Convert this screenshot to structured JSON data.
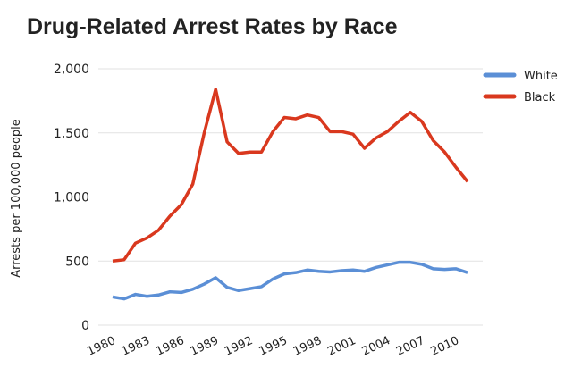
{
  "chart_data": {
    "type": "line",
    "title": "Drug-Related Arrest Rates by Race",
    "y_label": "Arrests per 100,000 people",
    "x": [
      1980,
      1981,
      1982,
      1983,
      1984,
      1985,
      1986,
      1987,
      1988,
      1989,
      1990,
      1991,
      1992,
      1993,
      1994,
      1995,
      1996,
      1997,
      1998,
      1999,
      2000,
      2001,
      2002,
      2003,
      2004,
      2005,
      2006,
      2007,
      2008,
      2009,
      2010,
      2011
    ],
    "series": [
      {
        "name": "White",
        "color": "#5b8fd6",
        "values": [
          220,
          205,
          240,
          225,
          235,
          260,
          255,
          280,
          320,
          370,
          295,
          270,
          285,
          300,
          360,
          400,
          410,
          430,
          420,
          415,
          425,
          430,
          420,
          450,
          470,
          490,
          490,
          475,
          440,
          435,
          440,
          410
        ]
      },
      {
        "name": "Black",
        "color": "#d9381e",
        "values": [
          500,
          510,
          640,
          680,
          740,
          850,
          940,
          1100,
          1500,
          1840,
          1430,
          1340,
          1350,
          1350,
          1510,
          1620,
          1610,
          1640,
          1620,
          1510,
          1510,
          1490,
          1380,
          1460,
          1510,
          1590,
          1660,
          1590,
          1440,
          1350,
          1230,
          1120
        ]
      }
    ],
    "xlim": [
      1980,
      2011
    ],
    "xticks": [
      1980,
      1983,
      1986,
      1989,
      1992,
      1995,
      1998,
      2001,
      2004,
      2007,
      2010
    ],
    "ylim": [
      0,
      2000
    ],
    "yticks": [
      0,
      {
        "value": 500,
        "label": "500"
      },
      {
        "value": 1000,
        "label": "1,000"
      },
      {
        "value": 1500,
        "label": "1,500"
      },
      {
        "value": 2000,
        "label": "2,000"
      }
    ],
    "grid": true,
    "legend": "top-right"
  }
}
